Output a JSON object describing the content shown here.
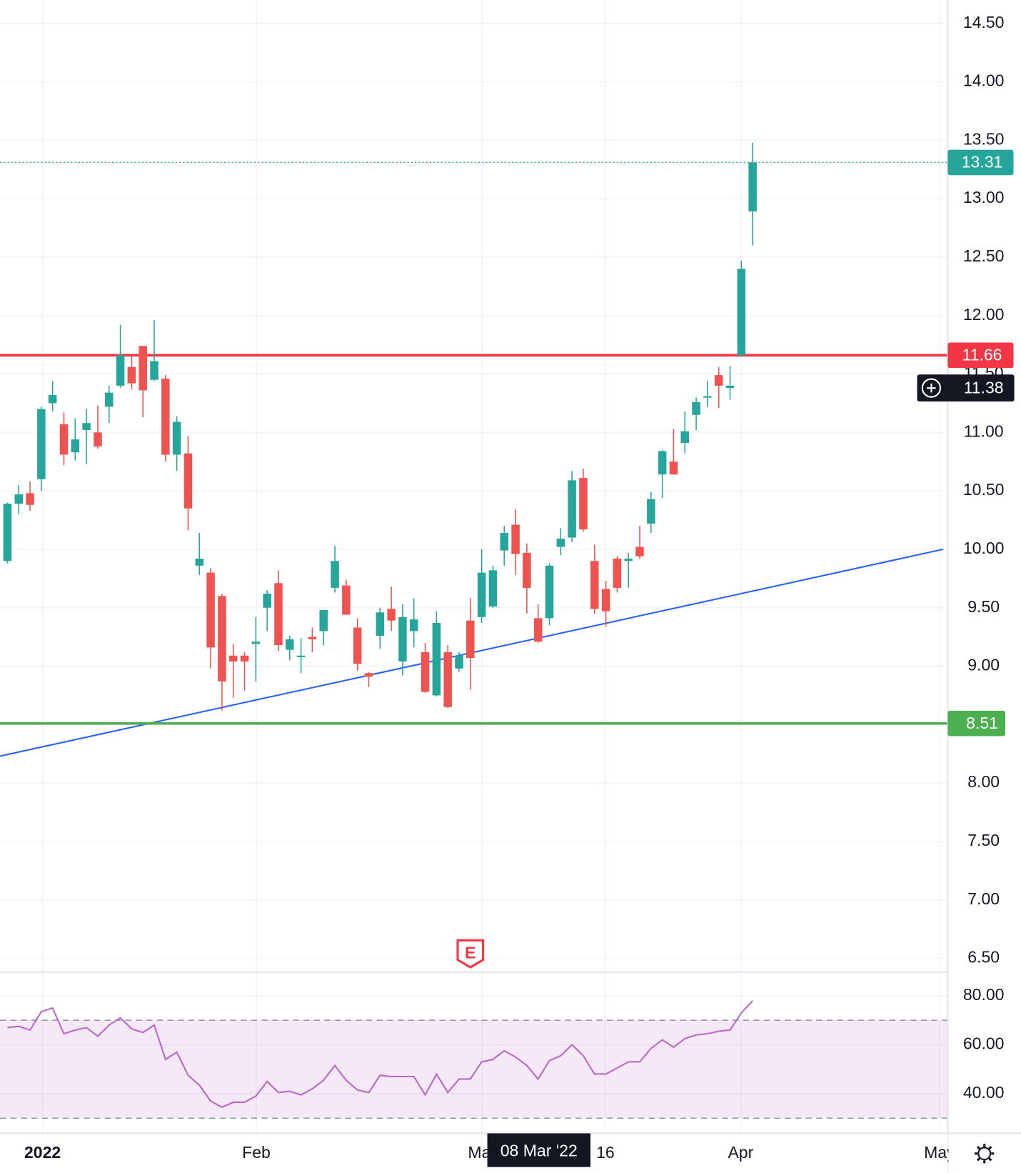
{
  "chart_data": {
    "type": "candlestick",
    "open": [
      9.9,
      10.39,
      10.48,
      10.6,
      11.25,
      11.07,
      10.83,
      11.02,
      11.0,
      11.22,
      11.4,
      11.56,
      11.74,
      11.45,
      11.46,
      10.81,
      10.82,
      9.86,
      9.8,
      9.6,
      9.09,
      9.09,
      9.19,
      9.5,
      9.71,
      9.14,
      9.08,
      9.25,
      9.3,
      9.67,
      9.69,
      9.33,
      8.94,
      9.26,
      9.49,
      9.04,
      9.3,
      9.12,
      8.75,
      9.12,
      8.98,
      9.39,
      9.42,
      9.51,
      9.99,
      10.21,
      9.97,
      9.41,
      9.41,
      10.02,
      10.1,
      10.61,
      9.9,
      9.66,
      9.92,
      9.9,
      10.02,
      10.22,
      10.64,
      10.75,
      10.91,
      11.15,
      11.3,
      11.49,
      11.38,
      11.66,
      12.89
    ],
    "high": [
      10.4,
      10.55,
      10.58,
      11.22,
      11.44,
      11.17,
      11.12,
      11.2,
      11.23,
      11.4,
      11.92,
      11.66,
      11.74,
      11.96,
      11.49,
      11.14,
      10.97,
      10.14,
      9.84,
      9.62,
      9.19,
      9.12,
      9.42,
      9.65,
      9.82,
      9.26,
      9.24,
      9.33,
      9.48,
      10.03,
      9.74,
      9.41,
      8.95,
      9.5,
      9.68,
      9.53,
      9.58,
      9.2,
      9.47,
      9.18,
      9.12,
      9.58,
      10.0,
      9.86,
      10.2,
      10.34,
      10.05,
      9.53,
      9.88,
      10.18,
      10.67,
      10.69,
      10.04,
      9.73,
      9.94,
      9.97,
      10.2,
      10.49,
      10.85,
      11.03,
      11.18,
      11.3,
      11.44,
      11.56,
      11.57,
      12.47,
      13.48
    ],
    "low": [
      9.88,
      10.3,
      10.33,
      10.5,
      11.18,
      10.72,
      10.76,
      10.73,
      10.86,
      11.08,
      11.38,
      11.37,
      11.13,
      11.44,
      10.75,
      10.67,
      10.16,
      9.78,
      8.98,
      8.62,
      8.73,
      8.79,
      8.87,
      9.3,
      9.13,
      9.05,
      8.94,
      9.12,
      9.18,
      9.63,
      9.44,
      8.96,
      8.82,
      9.15,
      9.3,
      8.92,
      9.16,
      8.77,
      8.74,
      8.64,
      8.95,
      8.8,
      9.37,
      9.5,
      9.86,
      9.78,
      9.45,
      9.2,
      9.35,
      9.95,
      10.06,
      10.15,
      9.45,
      9.34,
      9.63,
      9.67,
      9.92,
      10.14,
      10.44,
      10.64,
      10.82,
      11.02,
      11.22,
      11.21,
      11.28,
      11.66,
      12.6
    ],
    "close": [
      10.39,
      10.47,
      10.38,
      11.2,
      11.32,
      10.81,
      10.94,
      11.08,
      10.88,
      11.34,
      11.66,
      11.42,
      11.36,
      11.61,
      10.81,
      11.09,
      10.35,
      9.92,
      9.16,
      8.87,
      9.04,
      9.04,
      9.21,
      9.62,
      9.18,
      9.23,
      9.09,
      9.23,
      9.48,
      9.9,
      9.44,
      9.02,
      8.91,
      9.46,
      9.39,
      9.42,
      9.4,
      8.78,
      9.37,
      8.65,
      9.09,
      9.07,
      9.8,
      9.82,
      10.14,
      9.96,
      9.67,
      9.21,
      9.86,
      10.09,
      10.59,
      10.17,
      9.49,
      9.47,
      9.67,
      9.92,
      9.94,
      10.43,
      10.84,
      10.64,
      11.01,
      11.26,
      11.31,
      11.4,
      11.4,
      12.4,
      13.31
    ],
    "colors": {
      "up": "#26a69a",
      "down": "#ef5350"
    },
    "xlim": [
      -0.66,
      83.28
    ],
    "xticks": [
      {
        "value": 3.11,
        "label": "2022"
      },
      {
        "value": 22.04,
        "label": "Feb"
      },
      {
        "value": 42.04,
        "label": "Mar"
      },
      {
        "value": 52.96,
        "label": "16"
      },
      {
        "value": 64.94,
        "label": "Apr"
      },
      {
        "value": 82.55,
        "label": "May"
      }
    ],
    "ylim": [
      6.385,
      14.7
    ],
    "yticks": [
      {
        "value": 6.5,
        "label": "6.50"
      },
      {
        "value": 7,
        "label": "7.00"
      },
      {
        "value": 7.5,
        "label": "7.50"
      },
      {
        "value": 8,
        "label": "8.00"
      },
      {
        "value": 8.5,
        "label": "8.50"
      },
      {
        "value": 9,
        "label": "9.00"
      },
      {
        "value": 9.5,
        "label": "9.50"
      },
      {
        "value": 10,
        "label": "10.00"
      },
      {
        "value": 10.5,
        "label": "10.50"
      },
      {
        "value": 11,
        "label": "11.00"
      },
      {
        "value": 11.5,
        "label": "11.50"
      },
      {
        "value": 12,
        "label": "12.00"
      },
      {
        "value": 12.5,
        "label": "12.50"
      },
      {
        "value": 13,
        "label": "13.00"
      },
      {
        "value": 13.5,
        "label": "13.50"
      },
      {
        "value": 14,
        "label": "14.00"
      },
      {
        "value": 14.5,
        "label": "14.50"
      }
    ],
    "grid": true,
    "last_price": {
      "value": 13.31,
      "color": "#26a69a"
    },
    "horizontal_lines": [
      {
        "value": 11.66,
        "color": "#f23645"
      },
      {
        "value": 8.51,
        "color": "#4caf50"
      }
    ],
    "trendline": {
      "x": [
        -0.66,
        82.88
      ],
      "y": [
        8.23,
        10.0
      ],
      "color": "#2962ff"
    },
    "crosshair": {
      "price": 11.38,
      "date": "08 Mar '22"
    },
    "earnings_marker": {
      "x": 41,
      "label": "E",
      "color": "#f23645"
    },
    "rsi": {
      "color": "#ba68c8",
      "band": [
        30,
        70
      ],
      "ylim": [
        23.8,
        89.5
      ],
      "yticks": [
        {
          "value": 80,
          "label": "80.00"
        },
        {
          "value": 60,
          "label": "60.00"
        },
        {
          "value": 40,
          "label": "40.00"
        }
      ],
      "values": [
        67,
        67.5,
        66,
        73.5,
        75,
        64.5,
        66,
        67,
        63.5,
        68,
        71,
        66.5,
        65,
        68,
        54,
        57,
        47.5,
        43.5,
        37,
        34.5,
        36.5,
        36.5,
        39,
        45,
        40.5,
        41,
        39.5,
        42,
        45.5,
        51.5,
        45.5,
        41.5,
        40.5,
        47.5,
        47,
        47,
        47,
        39.5,
        48,
        40.5,
        46,
        46,
        53,
        54,
        57.5,
        55,
        51.5,
        46,
        53.5,
        55.5,
        60,
        55.5,
        48,
        48,
        50.5,
        53,
        53,
        58.5,
        62,
        59,
        62.5,
        64,
        64.5,
        65.5,
        66,
        73,
        78
      ]
    }
  }
}
